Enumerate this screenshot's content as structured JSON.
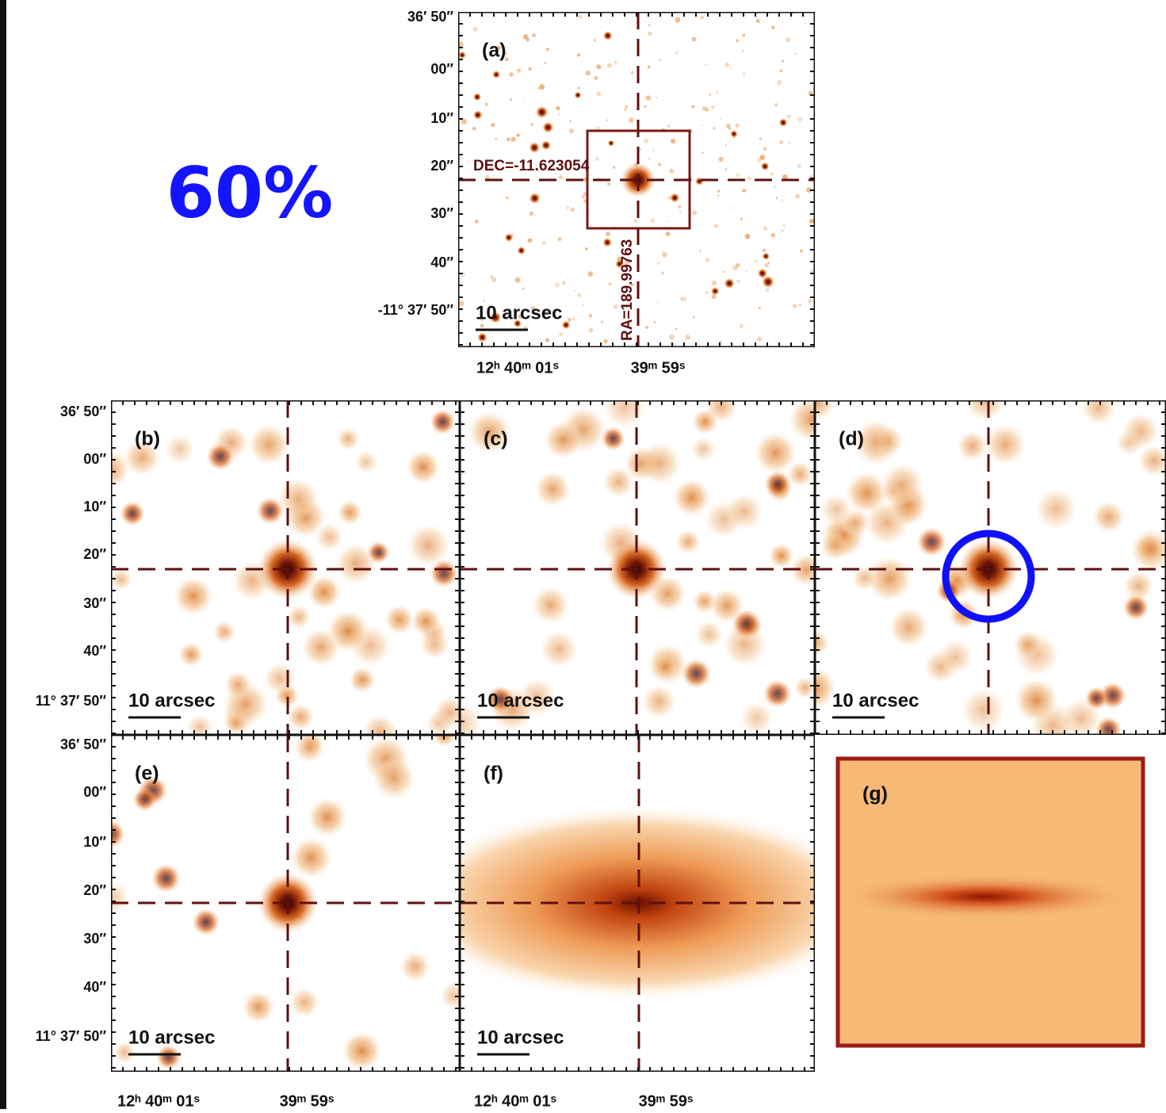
{
  "badge": "60%",
  "panel_a": {
    "label": "(a)",
    "scale_bar": "10 arcsec",
    "dec_marker": "DEC=-11.623054",
    "ra_marker": "RA=189.99763"
  },
  "y_ticks_a": [
    "36′ 50″",
    "00″",
    "10″",
    "20″",
    "30″",
    "40″",
    "-11° 37′ 50″"
  ],
  "y_ticks_rows": [
    "36′ 50″",
    "00″",
    "10″",
    "20″",
    "30″",
    "40″",
    "11° 37′ 50″"
  ],
  "x_ticks": [
    "12ʰ 40ᵐ 01ˢ",
    "39ᵐ 59ˢ"
  ],
  "panels": [
    {
      "label": "(b)",
      "scale_bar": "10 arcsec"
    },
    {
      "label": "(c)",
      "scale_bar": "10 arcsec"
    },
    {
      "label": "(d)",
      "scale_bar": "10 arcsec"
    },
    {
      "label": "(e)",
      "scale_bar": "10 arcsec"
    },
    {
      "label": "(f)",
      "scale_bar": "10 arcsec"
    }
  ],
  "panel_g": {
    "label": "(g)"
  }
}
